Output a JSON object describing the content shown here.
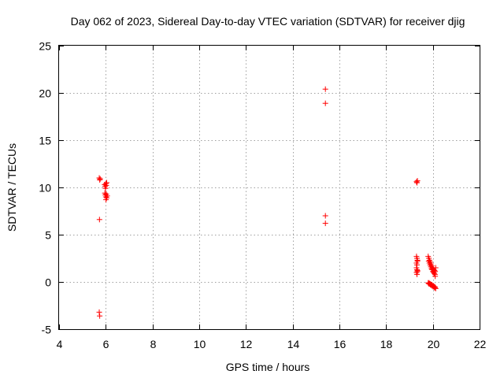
{
  "chart_data": {
    "type": "scatter",
    "title": "Day 062 of 2023, Sidereal Day-to-day VTEC variation (SDTVAR) for receiver djig",
    "xlabel": "GPS time / hours",
    "ylabel": "SDTVAR / TECUs",
    "xlim": [
      4,
      22
    ],
    "ylim": [
      -5,
      25
    ],
    "xticks": [
      4,
      6,
      8,
      10,
      12,
      14,
      16,
      18,
      20,
      22
    ],
    "yticks": [
      -5,
      0,
      5,
      10,
      15,
      20,
      25
    ],
    "grid": true,
    "marker": "+",
    "color": "#ff0000",
    "series": [
      {
        "name": "SDTVAR",
        "points": [
          [
            5.72,
            11.0
          ],
          [
            5.74,
            10.8
          ],
          [
            5.76,
            10.9
          ],
          [
            5.73,
            6.6
          ],
          [
            5.72,
            -3.2
          ],
          [
            5.74,
            -3.6
          ],
          [
            5.95,
            10.3
          ],
          [
            5.97,
            10.1
          ],
          [
            5.99,
            9.9
          ],
          [
            6.0,
            10.4
          ],
          [
            6.02,
            10.2
          ],
          [
            6.04,
            10.5
          ],
          [
            5.96,
            9.4
          ],
          [
            5.98,
            9.2
          ],
          [
            6.0,
            9.0
          ],
          [
            6.02,
            9.3
          ],
          [
            6.04,
            8.9
          ],
          [
            6.06,
            9.1
          ],
          [
            6.01,
            8.7
          ],
          [
            15.4,
            20.4
          ],
          [
            15.4,
            18.9
          ],
          [
            15.4,
            7.0
          ],
          [
            15.4,
            6.2
          ],
          [
            19.3,
            10.6
          ],
          [
            19.32,
            10.5
          ],
          [
            19.34,
            10.7
          ],
          [
            19.3,
            2.7
          ],
          [
            19.32,
            2.5
          ],
          [
            19.34,
            2.2
          ],
          [
            19.3,
            2.0
          ],
          [
            19.32,
            1.8
          ],
          [
            19.34,
            2.3
          ],
          [
            19.3,
            1.5
          ],
          [
            19.32,
            1.3
          ],
          [
            19.34,
            1.1
          ],
          [
            19.3,
            1.0
          ],
          [
            19.32,
            0.8
          ],
          [
            19.34,
            1.2
          ],
          [
            19.8,
            2.7
          ],
          [
            19.83,
            2.5
          ],
          [
            19.86,
            2.3
          ],
          [
            19.89,
            2.1
          ],
          [
            19.92,
            1.9
          ],
          [
            19.95,
            1.7
          ],
          [
            19.98,
            1.5
          ],
          [
            20.01,
            1.4
          ],
          [
            20.04,
            1.3
          ],
          [
            20.07,
            1.2
          ],
          [
            20.1,
            1.1
          ],
          [
            19.82,
            2.2
          ],
          [
            19.85,
            2.0
          ],
          [
            19.88,
            1.8
          ],
          [
            19.91,
            1.6
          ],
          [
            19.94,
            1.4
          ],
          [
            19.97,
            1.3
          ],
          [
            20.0,
            1.1
          ],
          [
            20.03,
            1.0
          ],
          [
            20.06,
            0.9
          ],
          [
            20.09,
            0.8
          ],
          [
            20.12,
            1.5
          ],
          [
            20.1,
            0.6
          ],
          [
            19.8,
            -0.1
          ],
          [
            19.83,
            -0.2
          ],
          [
            19.86,
            -0.2
          ],
          [
            19.89,
            -0.3
          ],
          [
            19.92,
            -0.3
          ],
          [
            19.95,
            -0.4
          ],
          [
            19.98,
            -0.4
          ],
          [
            20.01,
            -0.5
          ],
          [
            20.04,
            -0.5
          ],
          [
            20.07,
            -0.6
          ],
          [
            20.1,
            -0.6
          ],
          [
            20.12,
            -0.7
          ],
          [
            19.84,
            -0.1
          ],
          [
            19.9,
            -0.2
          ],
          [
            19.96,
            -0.3
          ],
          [
            20.02,
            -0.4
          ],
          [
            20.08,
            -0.5
          ]
        ]
      }
    ]
  }
}
